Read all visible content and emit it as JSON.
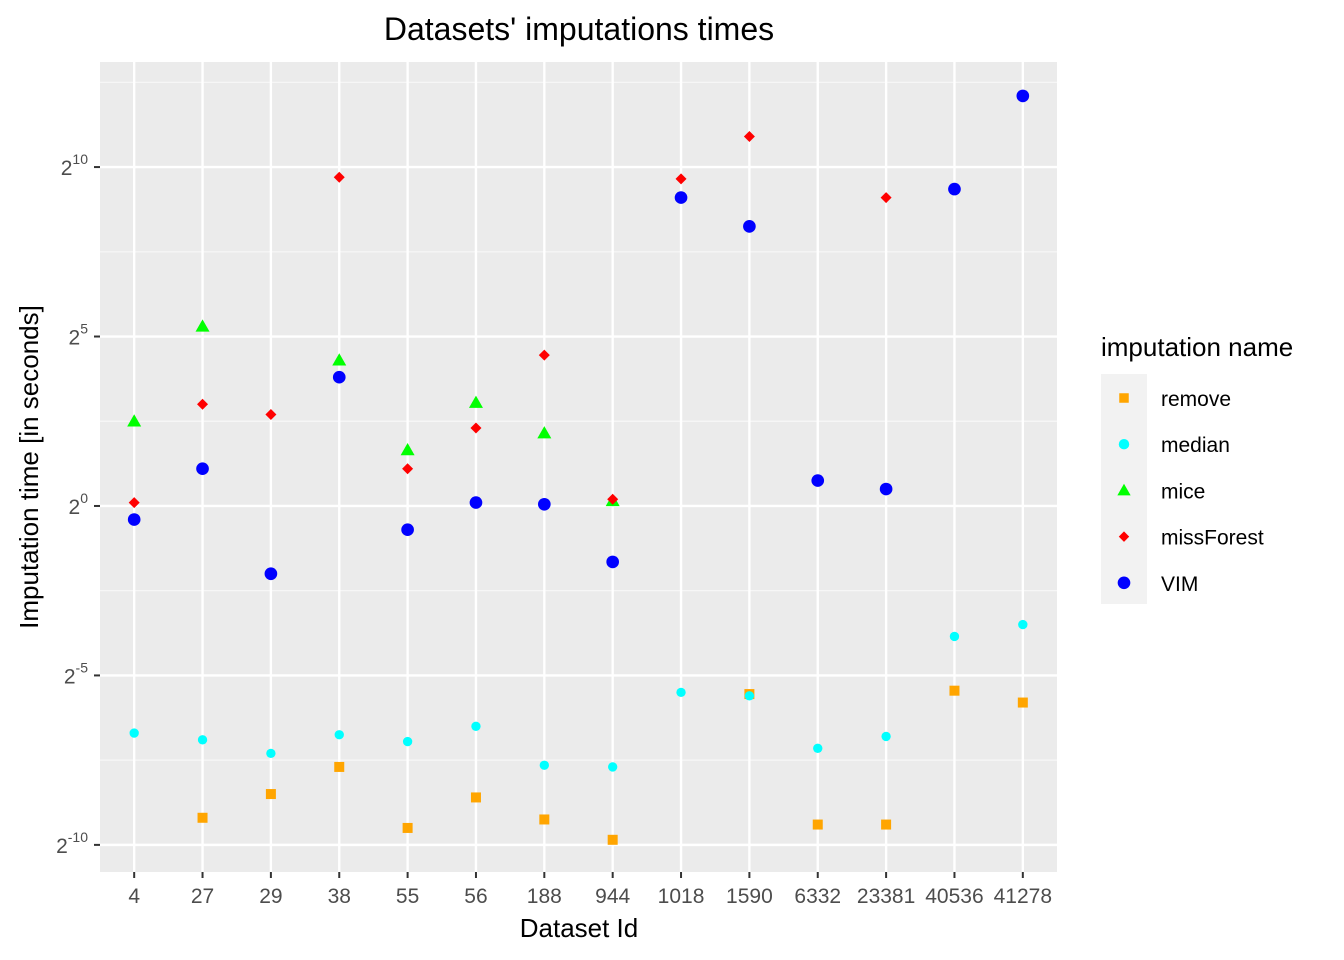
{
  "chart_data": {
    "type": "scatter",
    "title": "Datasets' imputations times",
    "xlabel": "Dataset Id",
    "ylabel": "Imputation time [in seconds]",
    "y_scale": "log2",
    "y_ticks": [
      {
        "base": "2",
        "exp": "10",
        "value": 10
      },
      {
        "base": "2",
        "exp": "5",
        "value": 5
      },
      {
        "base": "2",
        "exp": "0",
        "value": 0
      },
      {
        "base": "2",
        "exp": "-5",
        "value": -5
      },
      {
        "base": "2",
        "exp": "-10",
        "value": -10
      }
    ],
    "ylim_log2": [
      -10.8,
      13.1
    ],
    "categories": [
      "4",
      "27",
      "29",
      "38",
      "55",
      "56",
      "188",
      "944",
      "1018",
      "1590",
      "6332",
      "23381",
      "40536",
      "41278"
    ],
    "legend": {
      "title": "imputation name",
      "position": "right"
    },
    "grid": true,
    "series": [
      {
        "name": "remove",
        "color": "#FFA500",
        "shape": "square",
        "log2_values": [
          null,
          -9.2,
          -8.5,
          -7.7,
          -9.5,
          -8.6,
          -9.25,
          -9.85,
          null,
          -5.55,
          -9.4,
          -9.4,
          -5.45,
          -5.8
        ]
      },
      {
        "name": "median",
        "color": "#00FFFF",
        "shape": "circle",
        "log2_values": [
          -6.7,
          -6.9,
          -7.3,
          -6.75,
          -6.95,
          -6.5,
          -7.65,
          -7.7,
          -5.5,
          -5.6,
          -7.15,
          -6.8,
          -3.85,
          -3.5
        ]
      },
      {
        "name": "mice",
        "color": "#00FF00",
        "shape": "triangle",
        "log2_values": [
          2.5,
          5.3,
          null,
          4.3,
          1.65,
          3.05,
          2.15,
          0.15,
          null,
          null,
          null,
          null,
          null,
          null
        ]
      },
      {
        "name": "missForest",
        "color": "#FF0000",
        "shape": "diamond",
        "log2_values": [
          0.1,
          3.0,
          2.7,
          9.7,
          1.1,
          2.3,
          4.45,
          0.2,
          9.65,
          10.9,
          null,
          9.1,
          null,
          null
        ]
      },
      {
        "name": "VIM",
        "color": "#0000FF",
        "shape": "circle",
        "log2_values": [
          -0.4,
          1.1,
          -2.0,
          3.8,
          -0.7,
          0.1,
          0.05,
          -1.65,
          9.1,
          8.25,
          0.75,
          0.5,
          9.35,
          12.1
        ]
      }
    ]
  }
}
